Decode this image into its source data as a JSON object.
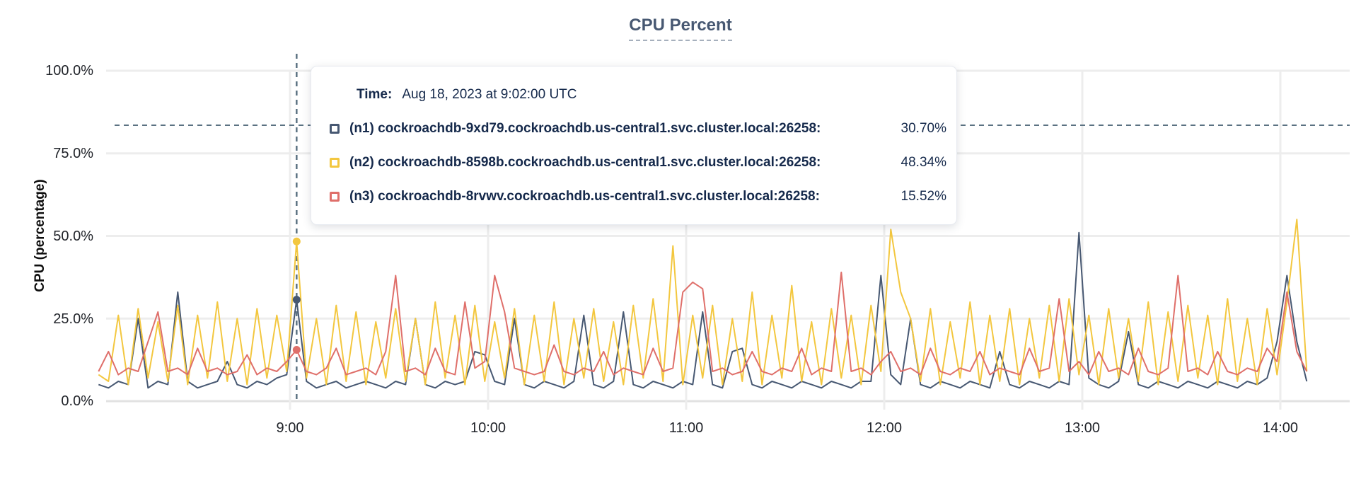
{
  "title": "CPU Percent",
  "y_axis": {
    "label": "CPU (percentage)",
    "ticks": [
      "100.0%",
      "75.0%",
      "50.0%",
      "25.0%",
      "0.0%"
    ]
  },
  "x_axis": {
    "ticks": [
      "9:00",
      "10:00",
      "11:00",
      "12:00",
      "13:00",
      "14:00"
    ]
  },
  "tooltip": {
    "time_label": "Time:",
    "time_value": "Aug 18, 2023 at 9:02:00 UTC",
    "rows": [
      {
        "name": "(n1) cockroachdb-9xd79.cockroachdb.us-central1.svc.cluster.local:26258:",
        "value": "30.70%",
        "color": "#475872"
      },
      {
        "name": "(n2) cockroachdb-8598b.cockroachdb.us-central1.svc.cluster.local:26258:",
        "value": "48.34%",
        "color": "#f3c73f"
      },
      {
        "name": "(n3) cockroachdb-8rvwv.cockroachdb.us-central1.svc.cluster.local:26258:",
        "value": "15.52%",
        "color": "#df6f6a"
      }
    ]
  },
  "colors": {
    "title": "#475872",
    "navy_text": "#15294b",
    "grid": "#ededed",
    "axis_line": "#e2e2e2",
    "dashed_guides": "#5b7282"
  },
  "chart_data": {
    "type": "line",
    "title": "CPU Percent",
    "xlabel": "",
    "ylabel": "CPU (percentage)",
    "ylim": [
      0,
      100
    ],
    "y_ticks_percent": [
      0,
      25,
      50,
      75,
      100
    ],
    "x_tick_times": [
      "9:00",
      "10:00",
      "11:00",
      "12:00",
      "13:00",
      "14:00"
    ],
    "x_start_time": "8:02",
    "x_step_minutes": 3,
    "grid": true,
    "legend_position": "tooltip",
    "threshold_line_percent": 83.5,
    "hover": {
      "time": "9:02",
      "values": [
        30.7,
        48.34,
        15.52
      ]
    },
    "series": [
      {
        "name": "(n1) cockroachdb-9xd79.cockroachdb.us-central1.svc.cluster.local:26258",
        "color": "#475872",
        "values": [
          5,
          4,
          6,
          5,
          25,
          4,
          6,
          5,
          33,
          6,
          4,
          5,
          6,
          12,
          5,
          4,
          6,
          5,
          7,
          8,
          30.7,
          6,
          4,
          5,
          6,
          4,
          5,
          6,
          5,
          4,
          6,
          5,
          25,
          5,
          4,
          6,
          5,
          6,
          15,
          14,
          6,
          5,
          25,
          5,
          4,
          6,
          5,
          4,
          6,
          26,
          5,
          4,
          6,
          27,
          5,
          4,
          6,
          5,
          4,
          6,
          5,
          27,
          5,
          4,
          15,
          16,
          5,
          4,
          6,
          5,
          4,
          6,
          5,
          4,
          6,
          5,
          4,
          6,
          6,
          38,
          8,
          5,
          25,
          5,
          4,
          6,
          5,
          4,
          6,
          5,
          4,
          15,
          5,
          4,
          6,
          5,
          4,
          6,
          5,
          51,
          7,
          5,
          4,
          6,
          21,
          5,
          4,
          6,
          5,
          4,
          6,
          5,
          4,
          6,
          5,
          4,
          6,
          5,
          7,
          18,
          38,
          18,
          6
        ]
      },
      {
        "name": "(n2) cockroachdb-8598b.cockroachdb.us-central1.svc.cluster.local:26258",
        "color": "#f3c73f",
        "values": [
          8,
          6,
          26,
          5,
          28,
          7,
          24,
          6,
          29,
          5,
          26,
          7,
          30,
          6,
          25,
          5,
          28,
          7,
          26,
          9,
          48.3,
          7,
          25,
          5,
          29,
          6,
          27,
          5,
          24,
          7,
          28,
          6,
          25,
          5,
          30,
          7,
          26,
          5,
          29,
          6,
          24,
          7,
          28,
          5,
          26,
          6,
          30,
          5,
          25,
          7,
          28,
          6,
          24,
          5,
          29,
          7,
          31,
          6,
          47,
          5,
          26,
          7,
          29,
          5,
          25,
          6,
          33,
          5,
          26,
          7,
          35,
          6,
          24,
          5,
          28,
          7,
          26,
          5,
          29,
          9,
          52,
          33,
          25,
          6,
          28,
          5,
          24,
          7,
          30,
          5,
          26,
          6,
          28,
          5,
          25,
          7,
          29,
          6,
          31,
          8,
          26,
          5,
          28,
          7,
          25,
          6,
          30,
          5,
          27,
          6,
          29,
          7,
          26,
          5,
          31,
          6,
          25,
          5,
          28,
          8,
          30,
          55,
          9
        ]
      },
      {
        "name": "(n3) cockroachdb-8rvwv.cockroachdb.us-central1.svc.cluster.local:26258",
        "color": "#df6f6a",
        "values": [
          9,
          15,
          8,
          10,
          9,
          18,
          27,
          9,
          10,
          8,
          16,
          9,
          10,
          8,
          9,
          14,
          8,
          10,
          9,
          12,
          15.5,
          9,
          8,
          10,
          16,
          8,
          9,
          10,
          8,
          15,
          38,
          9,
          10,
          8,
          16,
          9,
          8,
          30,
          10,
          12,
          38,
          27,
          10,
          9,
          8,
          9,
          17,
          9,
          8,
          10,
          9,
          15,
          8,
          10,
          9,
          8,
          16,
          9,
          10,
          33,
          36,
          34,
          9,
          10,
          8,
          9,
          15,
          9,
          8,
          10,
          9,
          16,
          8,
          10,
          9,
          39,
          9,
          10,
          8,
          12,
          15,
          9,
          10,
          8,
          16,
          9,
          8,
          10,
          9,
          15,
          8,
          10,
          9,
          8,
          16,
          9,
          10,
          31,
          9,
          12,
          8,
          15,
          9,
          10,
          8,
          16,
          9,
          8,
          10,
          38,
          9,
          10,
          8,
          15,
          9,
          8,
          10,
          9,
          16,
          12,
          33,
          15,
          9
        ]
      }
    ]
  }
}
